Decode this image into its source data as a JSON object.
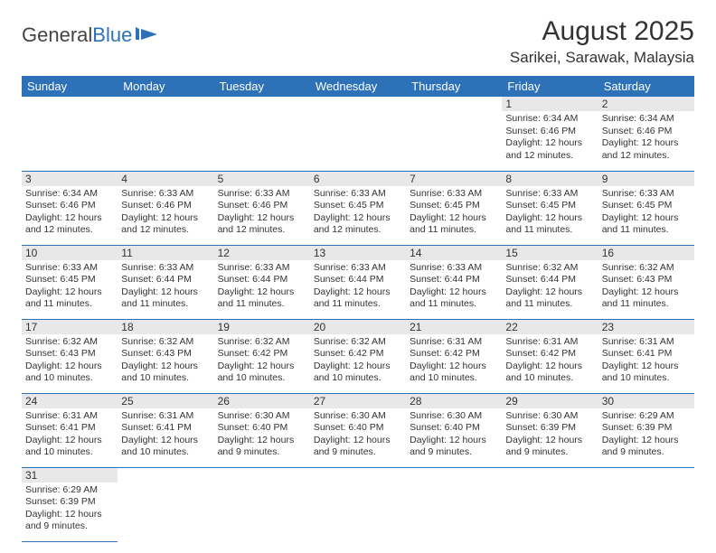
{
  "logo": {
    "text_a": "General",
    "text_b": "Blue"
  },
  "header": {
    "month_title": "August 2025",
    "location": "Sarikei, Sarawak, Malaysia"
  },
  "weekdays": [
    "Sunday",
    "Monday",
    "Tuesday",
    "Wednesday",
    "Thursday",
    "Friday",
    "Saturday"
  ],
  "colors": {
    "header_bg": "#2d72b8",
    "header_fg": "#ffffff",
    "daynum_bg": "#e8e8e8",
    "rule": "#2d72b8",
    "text": "#333333"
  },
  "days": [
    {
      "n": 1,
      "sr": "6:34 AM",
      "ss": "6:46 PM",
      "dl": "12 hours and 12 minutes."
    },
    {
      "n": 2,
      "sr": "6:34 AM",
      "ss": "6:46 PM",
      "dl": "12 hours and 12 minutes."
    },
    {
      "n": 3,
      "sr": "6:34 AM",
      "ss": "6:46 PM",
      "dl": "12 hours and 12 minutes."
    },
    {
      "n": 4,
      "sr": "6:33 AM",
      "ss": "6:46 PM",
      "dl": "12 hours and 12 minutes."
    },
    {
      "n": 5,
      "sr": "6:33 AM",
      "ss": "6:46 PM",
      "dl": "12 hours and 12 minutes."
    },
    {
      "n": 6,
      "sr": "6:33 AM",
      "ss": "6:45 PM",
      "dl": "12 hours and 12 minutes."
    },
    {
      "n": 7,
      "sr": "6:33 AM",
      "ss": "6:45 PM",
      "dl": "12 hours and 11 minutes."
    },
    {
      "n": 8,
      "sr": "6:33 AM",
      "ss": "6:45 PM",
      "dl": "12 hours and 11 minutes."
    },
    {
      "n": 9,
      "sr": "6:33 AM",
      "ss": "6:45 PM",
      "dl": "12 hours and 11 minutes."
    },
    {
      "n": 10,
      "sr": "6:33 AM",
      "ss": "6:45 PM",
      "dl": "12 hours and 11 minutes."
    },
    {
      "n": 11,
      "sr": "6:33 AM",
      "ss": "6:44 PM",
      "dl": "12 hours and 11 minutes."
    },
    {
      "n": 12,
      "sr": "6:33 AM",
      "ss": "6:44 PM",
      "dl": "12 hours and 11 minutes."
    },
    {
      "n": 13,
      "sr": "6:33 AM",
      "ss": "6:44 PM",
      "dl": "12 hours and 11 minutes."
    },
    {
      "n": 14,
      "sr": "6:33 AM",
      "ss": "6:44 PM",
      "dl": "12 hours and 11 minutes."
    },
    {
      "n": 15,
      "sr": "6:32 AM",
      "ss": "6:44 PM",
      "dl": "12 hours and 11 minutes."
    },
    {
      "n": 16,
      "sr": "6:32 AM",
      "ss": "6:43 PM",
      "dl": "12 hours and 11 minutes."
    },
    {
      "n": 17,
      "sr": "6:32 AM",
      "ss": "6:43 PM",
      "dl": "12 hours and 10 minutes."
    },
    {
      "n": 18,
      "sr": "6:32 AM",
      "ss": "6:43 PM",
      "dl": "12 hours and 10 minutes."
    },
    {
      "n": 19,
      "sr": "6:32 AM",
      "ss": "6:42 PM",
      "dl": "12 hours and 10 minutes."
    },
    {
      "n": 20,
      "sr": "6:32 AM",
      "ss": "6:42 PM",
      "dl": "12 hours and 10 minutes."
    },
    {
      "n": 21,
      "sr": "6:31 AM",
      "ss": "6:42 PM",
      "dl": "12 hours and 10 minutes."
    },
    {
      "n": 22,
      "sr": "6:31 AM",
      "ss": "6:42 PM",
      "dl": "12 hours and 10 minutes."
    },
    {
      "n": 23,
      "sr": "6:31 AM",
      "ss": "6:41 PM",
      "dl": "12 hours and 10 minutes."
    },
    {
      "n": 24,
      "sr": "6:31 AM",
      "ss": "6:41 PM",
      "dl": "12 hours and 10 minutes."
    },
    {
      "n": 25,
      "sr": "6:31 AM",
      "ss": "6:41 PM",
      "dl": "12 hours and 10 minutes."
    },
    {
      "n": 26,
      "sr": "6:30 AM",
      "ss": "6:40 PM",
      "dl": "12 hours and 9 minutes."
    },
    {
      "n": 27,
      "sr": "6:30 AM",
      "ss": "6:40 PM",
      "dl": "12 hours and 9 minutes."
    },
    {
      "n": 28,
      "sr": "6:30 AM",
      "ss": "6:40 PM",
      "dl": "12 hours and 9 minutes."
    },
    {
      "n": 29,
      "sr": "6:30 AM",
      "ss": "6:39 PM",
      "dl": "12 hours and 9 minutes."
    },
    {
      "n": 30,
      "sr": "6:29 AM",
      "ss": "6:39 PM",
      "dl": "12 hours and 9 minutes."
    },
    {
      "n": 31,
      "sr": "6:29 AM",
      "ss": "6:39 PM",
      "dl": "12 hours and 9 minutes."
    }
  ],
  "labels": {
    "sunrise": "Sunrise:",
    "sunset": "Sunset:",
    "daylight": "Daylight:"
  },
  "layout": {
    "first_weekday_index": 5,
    "rows": 6,
    "cols": 7
  }
}
